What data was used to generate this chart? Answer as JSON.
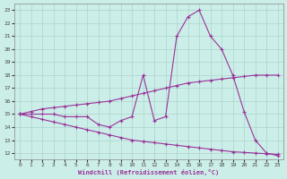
{
  "xlabel": "Windchill (Refroidissement éolien,°C)",
  "xlim": [
    -0.5,
    23.5
  ],
  "ylim": [
    11.5,
    23.5
  ],
  "xticks": [
    0,
    1,
    2,
    3,
    4,
    5,
    6,
    7,
    8,
    9,
    10,
    11,
    12,
    13,
    14,
    15,
    16,
    17,
    18,
    19,
    20,
    21,
    22,
    23
  ],
  "yticks": [
    12,
    13,
    14,
    15,
    16,
    17,
    18,
    19,
    20,
    21,
    22,
    23
  ],
  "bg_color": "#cceee8",
  "grid_color": "#aad4cc",
  "line_color": "#993399",
  "line1_x": [
    0,
    1,
    2,
    3,
    4,
    5,
    6,
    7,
    8,
    9,
    10,
    11,
    12,
    13,
    14,
    15,
    16,
    17,
    18,
    19,
    20,
    21,
    22,
    23
  ],
  "line1_y": [
    15.0,
    15.0,
    15.0,
    15.0,
    14.8,
    14.8,
    14.8,
    14.2,
    14.0,
    14.5,
    14.8,
    18.0,
    14.5,
    14.8,
    21.0,
    22.5,
    23.0,
    21.0,
    20.0,
    18.0,
    15.2,
    13.0,
    12.0,
    11.8
  ],
  "line2_x": [
    0,
    1,
    2,
    3,
    4,
    5,
    6,
    7,
    8,
    9,
    10,
    11,
    12,
    13,
    14,
    15,
    16,
    17,
    18,
    19,
    20,
    21,
    22,
    23
  ],
  "line2_y": [
    15.0,
    15.2,
    15.4,
    15.5,
    15.6,
    15.7,
    15.8,
    15.9,
    16.0,
    16.2,
    16.4,
    16.6,
    16.8,
    17.0,
    17.2,
    17.4,
    17.5,
    17.6,
    17.7,
    17.8,
    17.9,
    18.0,
    18.0,
    18.0
  ],
  "line3_x": [
    0,
    1,
    2,
    3,
    4,
    5,
    6,
    7,
    8,
    9,
    10,
    11,
    12,
    13,
    14,
    15,
    16,
    17,
    18,
    19,
    20,
    21,
    22,
    23
  ],
  "line3_y": [
    15.0,
    14.8,
    14.6,
    14.4,
    14.2,
    14.0,
    13.8,
    13.6,
    13.4,
    13.2,
    13.0,
    12.9,
    12.8,
    12.7,
    12.6,
    12.5,
    12.4,
    12.3,
    12.2,
    12.1,
    12.05,
    12.0,
    11.95,
    11.9
  ]
}
